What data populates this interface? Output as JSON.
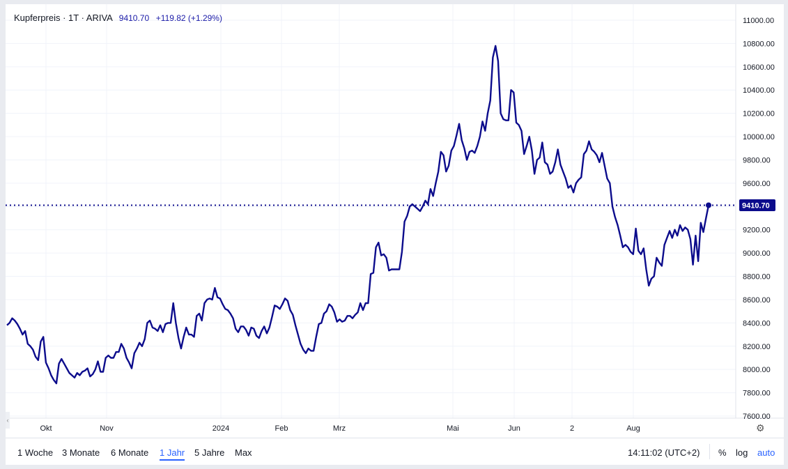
{
  "header": {
    "title": "Kupferpreis · 1T · ARIVA",
    "last": "9410.70",
    "change": "+119.82 (+1.29%)"
  },
  "ranges": [
    "1 Woche",
    "3 Monate",
    "6 Monate",
    "1 Jahr",
    "5 Jahre",
    "Max"
  ],
  "active_range": "1 Jahr",
  "clock": "14:11:02 (UTC+2)",
  "options": {
    "percent": "%",
    "log": "log",
    "auto": "auto"
  },
  "colors": {
    "line": "#0c0c8c",
    "price_label_bg": "#0c0c8c",
    "grid": "#f0f3fa",
    "active": "#2962ff"
  },
  "icons": {
    "settings": "gear-icon",
    "scroll": "chevron-left-icon"
  },
  "chart_data": {
    "type": "line",
    "title": "Kupferpreis · 1T · ARIVA",
    "ylim": [
      7600,
      11000
    ],
    "y_ticks": [
      "11000.00",
      "10800.00",
      "10600.00",
      "10400.00",
      "10200.00",
      "10000.00",
      "9800.00",
      "9600.00",
      "9400.00",
      "9200.00",
      "9000.00",
      "8800.00",
      "8600.00",
      "8400.00",
      "8200.00",
      "8000.00",
      "7800.00",
      "7600.00"
    ],
    "x_ticks": [
      "Okt",
      "Nov",
      "2024",
      "Feb",
      "Mrz",
      "Mai",
      "Jun",
      "2",
      "Aug"
    ],
    "last_price": 9410.7,
    "last_price_label": "9410.70",
    "grid": true,
    "series": [
      {
        "values": [
          8380,
          8400,
          8440,
          8420,
          8390,
          8350,
          8300,
          8330,
          8220,
          8200,
          8170,
          8110,
          8080,
          8240,
          8280,
          8060,
          8010,
          7950,
          7910,
          7880,
          8050,
          8090,
          8050,
          8010,
          7970,
          7950,
          7930,
          7970,
          7950,
          7980,
          7990,
          8010,
          7940,
          7960,
          8000,
          8070,
          7980,
          7980,
          8100,
          8120,
          8100,
          8100,
          8150,
          8150,
          8220,
          8180,
          8100,
          8060,
          8010,
          8140,
          8180,
          8230,
          8200,
          8260,
          8400,
          8420,
          8360,
          8350,
          8330,
          8380,
          8320,
          8390,
          8400,
          8400,
          8570,
          8400,
          8270,
          8180,
          8280,
          8360,
          8300,
          8300,
          8280,
          8460,
          8480,
          8420,
          8570,
          8600,
          8610,
          8600,
          8700,
          8620,
          8610,
          8560,
          8520,
          8510,
          8480,
          8440,
          8350,
          8320,
          8370,
          8370,
          8340,
          8290,
          8360,
          8350,
          8290,
          8270,
          8330,
          8370,
          8310,
          8360,
          8450,
          8550,
          8540,
          8520,
          8560,
          8610,
          8590,
          8510,
          8470,
          8380,
          8300,
          8220,
          8170,
          8140,
          8180,
          8160,
          8160,
          8280,
          8390,
          8400,
          8480,
          8500,
          8560,
          8540,
          8490,
          8410,
          8430,
          8410,
          8420,
          8460,
          8460,
          8440,
          8470,
          8490,
          8570,
          8510,
          8570,
          8570,
          8820,
          8830,
          9050,
          9090,
          8980,
          8990,
          8960,
          8850,
          8860,
          8860,
          8860,
          8860,
          9010,
          9270,
          9320,
          9400,
          9420,
          9400,
          9380,
          9360,
          9400,
          9450,
          9420,
          9550,
          9490,
          9600,
          9700,
          9870,
          9840,
          9700,
          9750,
          9880,
          9920,
          10010,
          10110,
          9970,
          9900,
          9800,
          9870,
          9880,
          9860,
          9920,
          10000,
          10130,
          10050,
          10200,
          10310,
          10680,
          10780,
          10650,
          10200,
          10150,
          10140,
          10140,
          10400,
          10380,
          10120,
          10100,
          10050,
          9850,
          9920,
          10000,
          9880,
          9680,
          9800,
          9820,
          9950,
          9780,
          9760,
          9680,
          9700,
          9780,
          9890,
          9760,
          9700,
          9640,
          9560,
          9580,
          9520,
          9600,
          9630,
          9650,
          9850,
          9880,
          9960,
          9890,
          9870,
          9840,
          9780,
          9860,
          9750,
          9640,
          9600,
          9400,
          9310,
          9240,
          9150,
          9050,
          9070,
          9050,
          9010,
          8990,
          9210,
          9020,
          8990,
          9040,
          8860,
          8720,
          8780,
          8800,
          8960,
          8920,
          8890,
          9070,
          9130,
          9190,
          9130,
          9200,
          9150,
          9240,
          9190,
          9220,
          9200,
          9120,
          8900,
          9150,
          8930,
          9260,
          9180,
          9300,
          9410.7
        ]
      }
    ]
  }
}
